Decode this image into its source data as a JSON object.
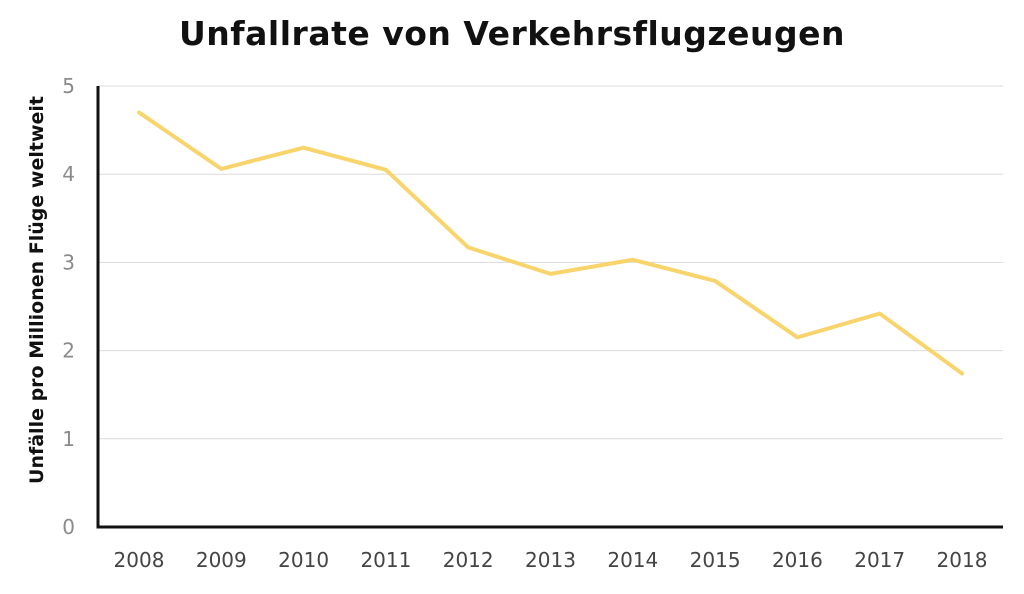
{
  "chart_data": {
    "type": "line",
    "title": "Unfallrate von Verkehrsflugzeugen",
    "xlabel": "",
    "ylabel": "Unfälle pro Millionen Flüge weltweit",
    "categories": [
      "2008",
      "2009",
      "2010",
      "2011",
      "2012",
      "2013",
      "2014",
      "2015",
      "2016",
      "2017",
      "2018"
    ],
    "series": [
      {
        "values": [
          4.7,
          4.06,
          4.3,
          4.05,
          3.17,
          2.87,
          3.03,
          2.79,
          2.15,
          2.42,
          1.74
        ]
      }
    ],
    "yticks": [
      0,
      1,
      2,
      3,
      4,
      5
    ],
    "ylim": [
      0,
      5
    ],
    "grid": true,
    "legend": "none",
    "colors": {
      "line": "#F8D46D",
      "grid": "#dcdcdc",
      "axis": "#111111"
    }
  }
}
